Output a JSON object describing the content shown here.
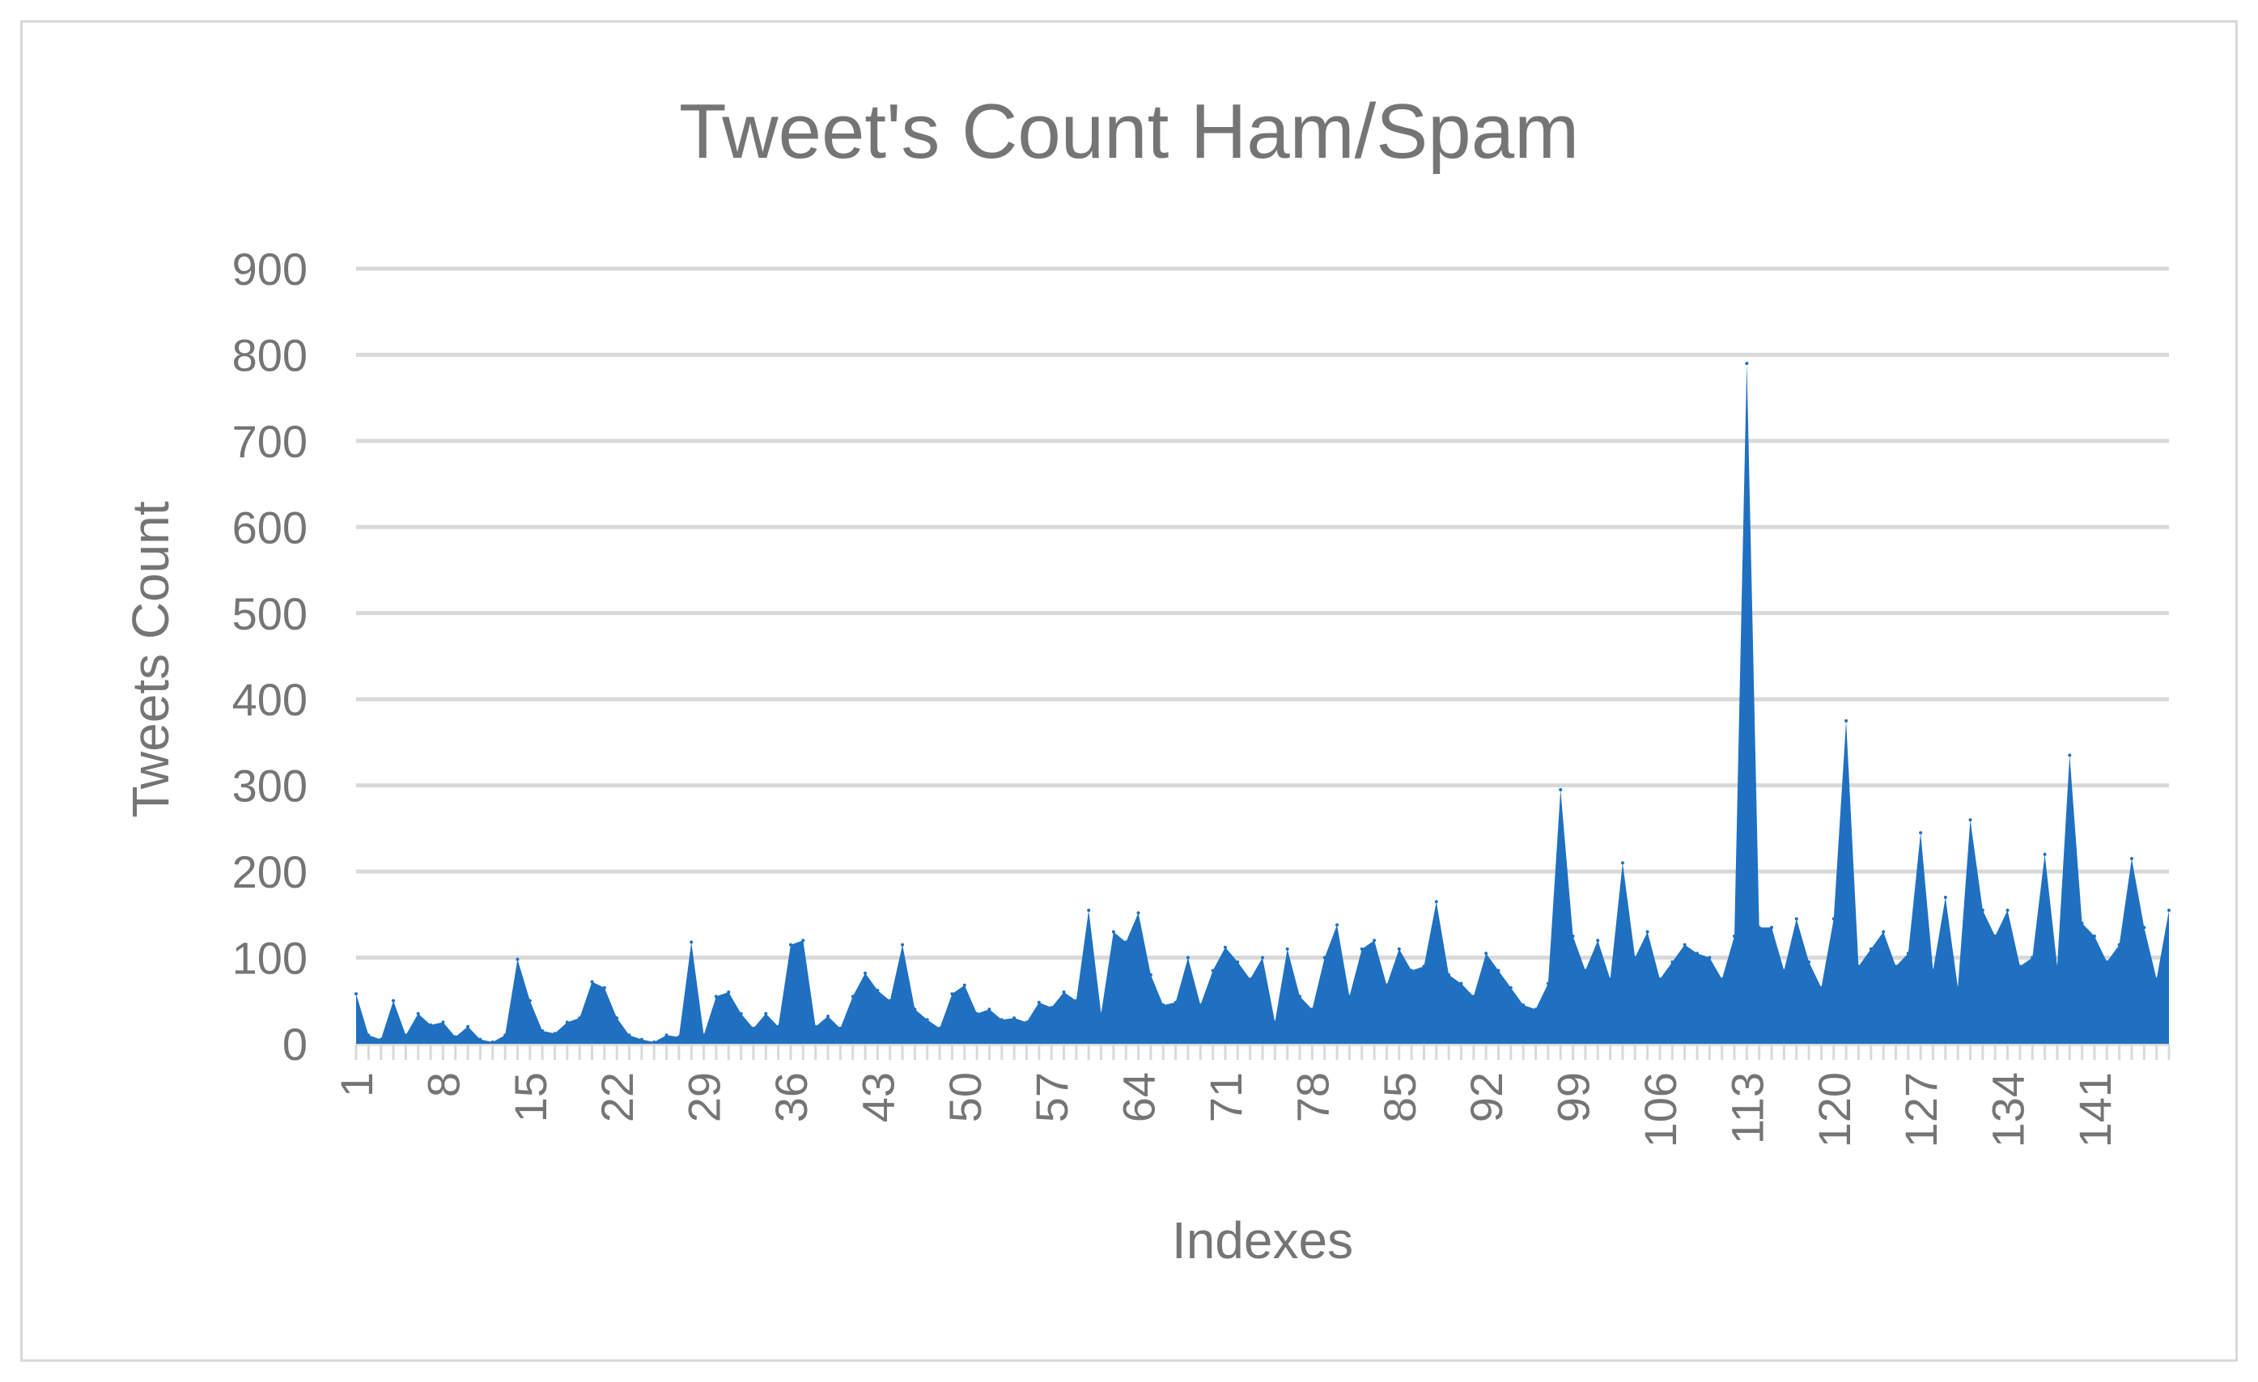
{
  "chart_data": {
    "type": "area",
    "title": "Tweet's Count Ham/Spam",
    "xlabel": "Indexes",
    "ylabel": "Tweets Count",
    "ylim": [
      0,
      900
    ],
    "yticks": [
      0,
      100,
      200,
      300,
      400,
      500,
      600,
      700,
      800,
      900
    ],
    "xtick_labels": [
      "1",
      "8",
      "15",
      "22",
      "29",
      "36",
      "43",
      "50",
      "57",
      "64",
      "71",
      "78",
      "85",
      "92",
      "99",
      "106",
      "113",
      "120",
      "127",
      "134",
      "141"
    ],
    "grid": true,
    "legend": "none",
    "colors": {
      "area": "#1f70c1",
      "grid": "#d9d9d9",
      "text": "#757575",
      "border": "#d9d9d9"
    },
    "x": [
      1,
      2,
      3,
      4,
      5,
      6,
      7,
      8,
      9,
      10,
      11,
      12,
      13,
      14,
      15,
      16,
      17,
      18,
      19,
      20,
      21,
      22,
      23,
      24,
      25,
      26,
      27,
      28,
      29,
      30,
      31,
      32,
      33,
      34,
      35,
      36,
      37,
      38,
      39,
      40,
      41,
      42,
      43,
      44,
      45,
      46,
      47,
      48,
      49,
      50,
      51,
      52,
      53,
      54,
      55,
      56,
      57,
      58,
      59,
      60,
      61,
      62,
      63,
      64,
      65,
      66,
      67,
      68,
      69,
      70,
      71,
      72,
      73,
      74,
      75,
      76,
      77,
      78,
      79,
      80,
      81,
      82,
      83,
      84,
      85,
      86,
      87,
      88,
      89,
      90,
      91,
      92,
      93,
      94,
      95,
      96,
      97,
      98,
      99,
      100,
      101,
      102,
      103,
      104,
      105,
      106,
      107,
      108,
      109,
      110,
      111,
      112,
      113,
      114,
      115,
      116,
      117,
      118,
      119,
      120,
      121,
      122,
      123,
      124,
      125,
      126,
      127,
      128,
      129,
      130,
      131,
      132,
      133,
      134,
      135,
      136,
      137,
      138,
      139,
      140,
      141,
      142,
      143,
      144,
      145,
      146,
      147
    ],
    "values": [
      58,
      10,
      5,
      50,
      10,
      35,
      22,
      25,
      8,
      20,
      5,
      2,
      10,
      98,
      50,
      15,
      12,
      25,
      30,
      72,
      65,
      30,
      10,
      5,
      2,
      10,
      8,
      118,
      10,
      55,
      60,
      35,
      18,
      35,
      20,
      115,
      120,
      20,
      32,
      18,
      55,
      82,
      62,
      50,
      115,
      40,
      28,
      18,
      58,
      68,
      35,
      40,
      28,
      30,
      25,
      48,
      42,
      60,
      50,
      155,
      35,
      130,
      118,
      152,
      80,
      45,
      48,
      100,
      45,
      85,
      112,
      95,
      75,
      100,
      25,
      110,
      55,
      40,
      100,
      138,
      55,
      110,
      120,
      68,
      110,
      85,
      90,
      165,
      80,
      70,
      55,
      105,
      85,
      65,
      45,
      40,
      70,
      295,
      125,
      85,
      120,
      75,
      210,
      100,
      130,
      75,
      95,
      115,
      105,
      100,
      75,
      125,
      790,
      135,
      135,
      85,
      145,
      95,
      65,
      145,
      375,
      90,
      110,
      130,
      90,
      105,
      245,
      85,
      170,
      65,
      260,
      155,
      125,
      155,
      90,
      100,
      220,
      90,
      335,
      140,
      125,
      95,
      115,
      215,
      135,
      75,
      155
    ]
  }
}
